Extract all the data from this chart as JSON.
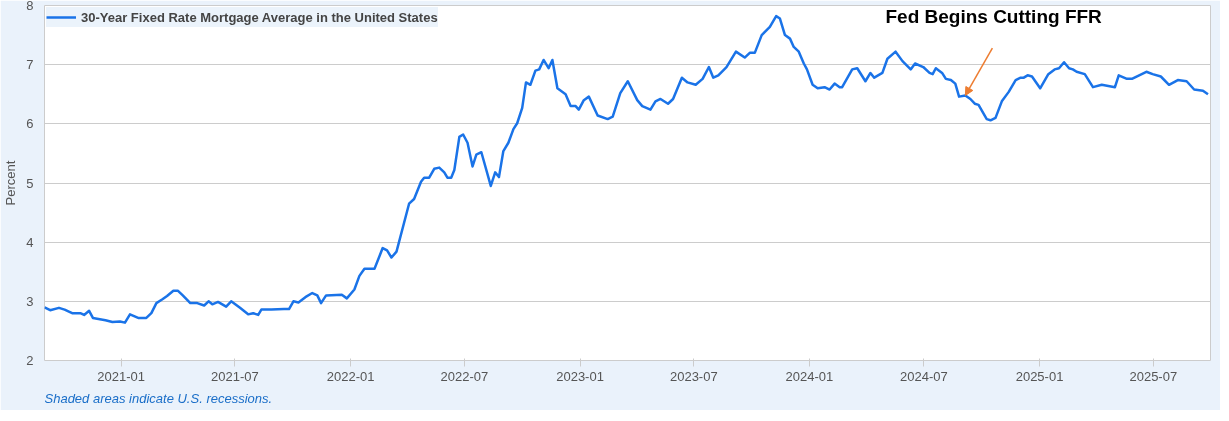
{
  "chart_data": {
    "type": "line",
    "x": [
      "2020-09-01",
      "2020-09-10",
      "2020-09-24",
      "2020-10-03",
      "2020-10-15",
      "2020-10-28",
      "2020-11-03",
      "2020-11-11",
      "2020-11-17",
      "2020-12-07",
      "2020-12-18",
      "2020-12-30",
      "2021-01-07",
      "2021-01-15",
      "2021-01-28",
      "2021-02-10",
      "2021-02-18",
      "2021-02-26",
      "2021-03-07",
      "2021-03-15",
      "2021-03-25",
      "2021-04-01",
      "2021-04-09",
      "2021-04-21",
      "2021-05-02",
      "2021-05-13",
      "2021-05-20",
      "2021-05-26",
      "2021-06-04",
      "2021-06-17",
      "2021-06-25",
      "2021-07-09",
      "2021-07-22",
      "2021-07-30",
      "2021-08-07",
      "2021-08-12",
      "2021-08-28",
      "2021-09-17",
      "2021-09-25",
      "2021-10-02",
      "2021-10-10",
      "2021-10-21",
      "2021-11-01",
      "2021-11-09",
      "2021-11-15",
      "2021-11-23",
      "2021-12-18",
      "2021-12-26",
      "2022-01-07",
      "2022-01-15",
      "2022-01-23",
      "2022-02-08",
      "2022-02-21",
      "2022-02-28",
      "2022-03-07",
      "2022-03-15",
      "2022-04-04",
      "2022-04-12",
      "2022-04-23",
      "2022-04-28",
      "2022-05-06",
      "2022-05-14",
      "2022-05-22",
      "2022-05-30",
      "2022-06-04",
      "2022-06-10",
      "2022-06-15",
      "2022-06-23",
      "2022-06-29",
      "2022-07-06",
      "2022-07-14",
      "2022-07-20",
      "2022-07-28",
      "2022-08-12",
      "2022-08-19",
      "2022-08-25",
      "2022-09-01",
      "2022-09-09",
      "2022-09-17",
      "2022-09-23",
      "2022-10-01",
      "2022-10-07",
      "2022-10-14",
      "2022-10-22",
      "2022-10-28",
      "2022-11-04",
      "2022-11-12",
      "2022-11-18",
      "2022-11-26",
      "2022-12-09",
      "2022-12-17",
      "2022-12-25",
      "2022-12-30",
      "2023-01-07",
      "2023-01-15",
      "2023-01-29",
      "2023-02-14",
      "2023-02-22",
      "2023-03-06",
      "2023-03-18",
      "2023-04-02",
      "2023-04-10",
      "2023-04-23",
      "2023-05-01",
      "2023-05-09",
      "2023-05-21",
      "2023-05-29",
      "2023-06-12",
      "2023-06-21",
      "2023-07-04",
      "2023-07-15",
      "2023-07-25",
      "2023-08-01",
      "2023-08-09",
      "2023-08-22",
      "2023-09-06",
      "2023-09-20",
      "2023-09-28",
      "2023-10-06",
      "2023-10-17",
      "2023-10-30",
      "2023-11-09",
      "2023-11-15",
      "2023-11-23",
      "2023-12-01",
      "2023-12-07",
      "2023-12-15",
      "2023-12-23",
      "2023-12-28",
      "2024-01-06",
      "2024-01-14",
      "2024-01-25",
      "2024-02-02",
      "2024-02-10",
      "2024-02-18",
      "2024-02-22",
      "2024-03-09",
      "2024-03-17",
      "2024-03-30",
      "2024-04-07",
      "2024-04-13",
      "2024-04-26",
      "2024-05-04",
      "2024-05-17",
      "2024-05-28",
      "2024-06-10",
      "2024-06-17",
      "2024-06-30",
      "2024-07-10",
      "2024-07-15",
      "2024-07-20",
      "2024-07-30",
      "2024-08-05",
      "2024-08-13",
      "2024-08-20",
      "2024-08-26",
      "2024-09-05",
      "2024-09-13",
      "2024-09-20",
      "2024-09-26",
      "2024-10-09",
      "2024-10-15",
      "2024-10-23",
      "2024-11-02",
      "2024-11-13",
      "2024-11-24",
      "2024-12-02",
      "2024-12-07",
      "2024-12-13",
      "2024-12-20",
      "2025-01-02",
      "2025-01-15",
      "2025-01-25",
      "2025-02-01",
      "2025-02-09",
      "2025-02-17",
      "2025-02-23",
      "2025-03-01",
      "2025-03-14",
      "2025-03-27",
      "2025-04-10",
      "2025-05-01",
      "2025-05-07",
      "2025-05-20",
      "2025-05-28",
      "2025-06-20",
      "2025-06-30",
      "2025-07-13",
      "2025-07-26",
      "2025-08-09",
      "2025-08-23",
      "2025-09-04",
      "2025-09-18",
      "2025-09-26"
    ],
    "series": [
      {
        "name": "30-Year Fixed Rate Mortgage Average in the United States",
        "color": "#1a73e8",
        "values": [
          2.9,
          2.85,
          2.89,
          2.86,
          2.8,
          2.8,
          2.77,
          2.84,
          2.72,
          2.68,
          2.65,
          2.66,
          2.64,
          2.78,
          2.72,
          2.72,
          2.8,
          2.97,
          3.03,
          3.09,
          3.18,
          3.18,
          3.1,
          2.97,
          2.97,
          2.93,
          3.0,
          2.95,
          2.99,
          2.91,
          3.0,
          2.89,
          2.78,
          2.8,
          2.77,
          2.86,
          2.86,
          2.87,
          2.87,
          3.0,
          2.98,
          3.07,
          3.14,
          3.1,
          2.97,
          3.1,
          3.11,
          3.05,
          3.2,
          3.43,
          3.55,
          3.55,
          3.9,
          3.86,
          3.74,
          3.84,
          4.65,
          4.73,
          5.02,
          5.09,
          5.09,
          5.24,
          5.26,
          5.18,
          5.09,
          5.09,
          5.22,
          5.78,
          5.82,
          5.68,
          5.28,
          5.48,
          5.52,
          4.95,
          5.18,
          5.1,
          5.54,
          5.68,
          5.91,
          6.01,
          6.27,
          6.7,
          6.66,
          6.9,
          6.92,
          7.08,
          6.94,
          7.08,
          6.6,
          6.5,
          6.3,
          6.3,
          6.24,
          6.4,
          6.46,
          6.14,
          6.08,
          6.12,
          6.52,
          6.72,
          6.4,
          6.3,
          6.24,
          6.38,
          6.42,
          6.34,
          6.42,
          6.78,
          6.7,
          6.66,
          6.76,
          6.96,
          6.78,
          6.82,
          6.96,
          7.22,
          7.12,
          7.2,
          7.2,
          7.5,
          7.64,
          7.82,
          7.78,
          7.5,
          7.44,
          7.3,
          7.22,
          7.02,
          6.92,
          6.66,
          6.6,
          6.62,
          6.58,
          6.68,
          6.62,
          6.62,
          6.92,
          6.94,
          6.72,
          6.86,
          6.78,
          6.86,
          7.1,
          7.22,
          7.06,
          6.92,
          7.02,
          6.96,
          6.86,
          6.84,
          6.94,
          6.86,
          6.76,
          6.74,
          6.68,
          6.46,
          6.48,
          6.42,
          6.34,
          6.32,
          6.08,
          6.06,
          6.1,
          6.38,
          6.54,
          6.74,
          6.78,
          6.78,
          6.82,
          6.8,
          6.6,
          6.84,
          6.92,
          6.94,
          7.04,
          6.94,
          6.92,
          6.88,
          6.84,
          6.62,
          6.66,
          6.62,
          6.82,
          6.76,
          6.76,
          6.88,
          6.84,
          6.8,
          6.66,
          6.74,
          6.72,
          6.58,
          6.56,
          6.5
        ]
      }
    ],
    "ylabel": "Percent",
    "xlim": [
      "2020-09-01",
      "2025-09-30"
    ],
    "xticks": [
      "2021-01",
      "2021-07",
      "2022-01",
      "2022-07",
      "2023-01",
      "2023-07",
      "2024-01",
      "2024-07",
      "2025-01",
      "2025-07"
    ],
    "ylim": [
      2,
      8
    ],
    "yticks": [
      2,
      3,
      4,
      5,
      6,
      7,
      8
    ],
    "grid": "y",
    "legend": "top left",
    "marker": "none",
    "line_style": "solid",
    "annotations": [
      {
        "text": "Fed Begins Cutting FFR",
        "x": "2024-09-05",
        "y": 6.48
      },
      "Shaded areas indicate U.S. recessions."
    ]
  }
}
